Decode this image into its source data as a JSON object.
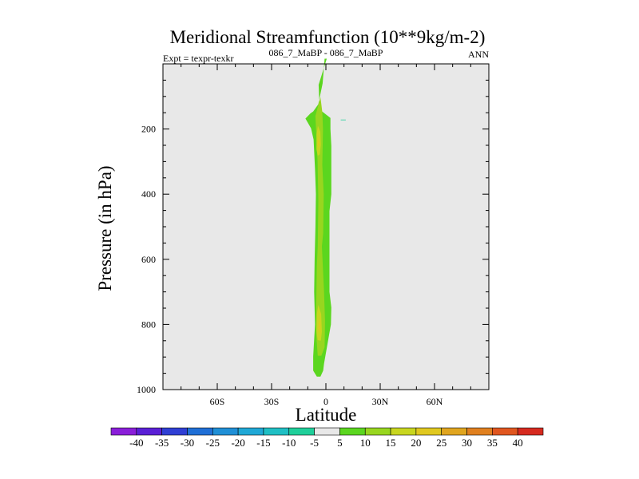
{
  "chart_data": {
    "type": "contour",
    "title": "Meridional Streamfunction (10**9kg/m-2)",
    "subtitle_left": "Expt = texpr-texkr",
    "subtitle_center": "086_7_MaBP - 086_7_MaBP",
    "subtitle_right": "ANN",
    "xlabel": "Latitude",
    "ylabel": "Pressure (in hPa)",
    "xlim": [
      -90,
      90
    ],
    "ylim": [
      1000,
      0
    ],
    "x_ticks": [
      {
        "value": -60,
        "label": "60S"
      },
      {
        "value": -30,
        "label": "30S"
      },
      {
        "value": 0,
        "label": "0"
      },
      {
        "value": 30,
        "label": "30N"
      },
      {
        "value": 60,
        "label": "60N"
      }
    ],
    "y_ticks": [
      {
        "value": 200,
        "label": "200"
      },
      {
        "value": 400,
        "label": "400"
      },
      {
        "value": 600,
        "label": "600"
      },
      {
        "value": 800,
        "label": "800"
      },
      {
        "value": 1000,
        "label": "1000"
      }
    ],
    "contour_levels": [
      -40,
      -35,
      -30,
      -25,
      -20,
      -15,
      -10,
      -5,
      5,
      10,
      15,
      20,
      25,
      30,
      35,
      40
    ],
    "colorbar_labels": [
      "-40",
      "-35",
      "-30",
      "-25",
      "-20",
      "-15",
      "-10",
      "-5",
      "5",
      "10",
      "15",
      "20",
      "25",
      "30",
      "35",
      "40"
    ],
    "colorbar_colors": [
      "#8a1ed9",
      "#5a1fd6",
      "#2f3fd4",
      "#1f6fd6",
      "#1f8fd6",
      "#1fa8d6",
      "#1fbfc4",
      "#1fcf9a",
      "#e8e8e8",
      "#5bd61f",
      "#98d61f",
      "#c8d61f",
      "#e0c81f",
      "#e0a51f",
      "#e0801f",
      "#e0561f",
      "#d62a1f"
    ],
    "background_color": "#e8e8e8",
    "regions": [
      {
        "name": "band-5-10",
        "color": "#5bd61f",
        "outline": [
          [
            -0.7,
            -16
          ],
          [
            0.5,
            -16
          ],
          [
            -4,
            64
          ],
          [
            -3.5,
            140
          ],
          [
            2.5,
            166
          ],
          [
            2.5,
            200
          ],
          [
            3,
            252
          ],
          [
            3,
            400
          ],
          [
            2,
            452
          ],
          [
            2,
            700
          ],
          [
            3,
            748
          ],
          [
            2.8,
            800
          ],
          [
            -1,
            920
          ],
          [
            -1.5,
            942
          ],
          [
            -3,
            960
          ],
          [
            -5,
            960
          ],
          [
            -7,
            942
          ],
          [
            -7,
            898
          ],
          [
            -6,
            800
          ],
          [
            -6.5,
            700
          ],
          [
            -6.2,
            600
          ],
          [
            -5.8,
            500
          ],
          [
            -5.5,
            400
          ],
          [
            -6,
            324
          ],
          [
            -6.8,
            232
          ],
          [
            -8.2,
            198
          ],
          [
            -11.3,
            168
          ],
          [
            -8.5,
            152
          ],
          [
            -7,
            146
          ],
          [
            -4.2,
            124
          ],
          [
            -1.8,
            60
          ]
        ]
      },
      {
        "name": "band-10-15",
        "color": "#98d61f",
        "outline": [
          [
            -3,
            102
          ],
          [
            -2,
            148
          ],
          [
            -1.6,
            200
          ],
          [
            -2,
            310
          ],
          [
            -1.2,
            400
          ],
          [
            -1.5,
            520
          ],
          [
            -2.2,
            560
          ],
          [
            -1,
            700
          ],
          [
            -0.5,
            790
          ],
          [
            -0.7,
            870
          ],
          [
            -2.5,
            896
          ],
          [
            -4.5,
            896
          ],
          [
            -5.4,
            828
          ],
          [
            -5.4,
            760
          ],
          [
            -5,
            620
          ],
          [
            -4.5,
            560
          ],
          [
            -4.2,
            420
          ],
          [
            -4.6,
            300
          ],
          [
            -5.2,
            230
          ],
          [
            -5.8,
            160
          ]
        ]
      },
      {
        "name": "band-15-20-upper",
        "color": "#c8d61f",
        "outline": [
          [
            -4.4,
            190
          ],
          [
            -3.1,
            208
          ],
          [
            -2.8,
            248
          ],
          [
            -3.4,
            278
          ],
          [
            -4.5,
            282
          ],
          [
            -5.2,
            262
          ],
          [
            -5.1,
            216
          ]
        ]
      },
      {
        "name": "band-15-20-lower",
        "color": "#c8d61f",
        "outline": [
          [
            -4.2,
            740
          ],
          [
            -2.6,
            768
          ],
          [
            -2.2,
            822
          ],
          [
            -2.8,
            850
          ],
          [
            -4.6,
            848
          ],
          [
            -5.2,
            818
          ],
          [
            -5,
            768
          ]
        ]
      },
      {
        "name": "band-20-25-upper",
        "color": "#e0c81f",
        "outline": [
          [
            -4.2,
            222
          ],
          [
            -3.5,
            242
          ],
          [
            -4,
            260
          ],
          [
            -4.6,
            248
          ]
        ]
      },
      {
        "name": "band-20-25-lower",
        "color": "#e0c81f",
        "outline": [
          [
            -3.8,
            780
          ],
          [
            -3.1,
            800
          ],
          [
            -3.5,
            826
          ],
          [
            -4.3,
            812
          ]
        ]
      },
      {
        "name": "isolated-cell",
        "color": "#1fcf9a",
        "outline": [
          [
            8.2,
            171
          ],
          [
            11,
            171
          ],
          [
            11,
            173
          ],
          [
            8.2,
            173
          ]
        ]
      }
    ]
  }
}
